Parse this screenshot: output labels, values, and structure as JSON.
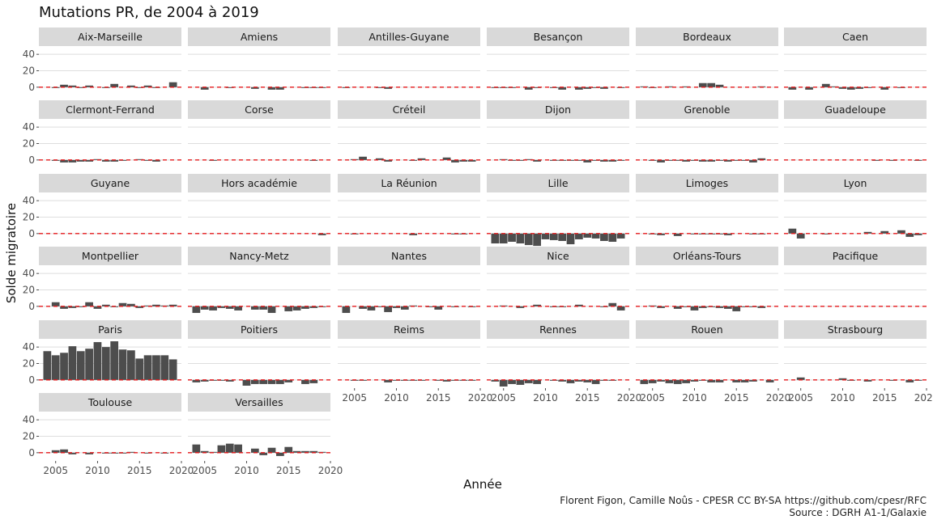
{
  "chart_data": {
    "type": "bar",
    "title": "Mutations PR, de 2004 à 2019",
    "xlabel": "Année",
    "ylabel": "Solde migratoire",
    "x_ticks": [
      2005,
      2010,
      2015,
      2020
    ],
    "y_ticks": [
      0,
      20,
      40
    ],
    "xlim": [
      2003,
      2020
    ],
    "ylim": [
      -10,
      50
    ],
    "reference_line": {
      "y": 0,
      "color": "#e41a1c",
      "style": "dashed"
    },
    "years": [
      2004,
      2005,
      2006,
      2007,
      2008,
      2009,
      2010,
      2011,
      2012,
      2013,
      2014,
      2015,
      2016,
      2017,
      2018,
      2019
    ],
    "panels": [
      {
        "name": "Aix-Marseille",
        "values": [
          0,
          -1,
          3,
          2,
          -1,
          2,
          0,
          -1,
          4,
          0,
          2,
          -1,
          2,
          -1,
          0,
          6
        ]
      },
      {
        "name": "Amiens",
        "values": [
          0,
          -3,
          0,
          0,
          -1,
          0,
          0,
          -2,
          0,
          -3,
          -3,
          0,
          0,
          -1,
          -1,
          -1
        ]
      },
      {
        "name": "Antilles-Guyane",
        "values": [
          -1,
          0,
          0,
          0,
          -1,
          -2,
          0,
          0,
          0,
          0,
          0,
          0,
          0,
          0,
          0,
          0
        ]
      },
      {
        "name": "Besançon",
        "values": [
          -1,
          -1,
          -1,
          0,
          -3,
          -1,
          0,
          -1,
          -3,
          0,
          -3,
          -2,
          -1,
          -2,
          0,
          -1
        ]
      },
      {
        "name": "Bordeaux",
        "values": [
          1,
          -1,
          0,
          1,
          0,
          1,
          0,
          5,
          5,
          3,
          0,
          0,
          0,
          0,
          1,
          0
        ]
      },
      {
        "name": "Caen",
        "values": [
          -3,
          0,
          -3,
          0,
          4,
          1,
          -2,
          -3,
          -2,
          -1,
          0,
          -3,
          0,
          -1,
          0,
          0
        ]
      },
      {
        "name": "Clermont-Ferrand",
        "values": [
          0,
          -1,
          -3,
          -3,
          -2,
          -2,
          1,
          -2,
          -2,
          -1,
          0,
          1,
          -1,
          -2,
          0,
          0
        ]
      },
      {
        "name": "Corse",
        "values": [
          0,
          0,
          -1,
          0,
          0,
          0,
          0,
          0,
          0,
          0,
          0,
          0,
          0,
          0,
          -1,
          0
        ]
      },
      {
        "name": "Créteil",
        "values": [
          0,
          1,
          4,
          0,
          2,
          -2,
          0,
          0,
          -1,
          2,
          0,
          0,
          3,
          -3,
          -2,
          -2
        ]
      },
      {
        "name": "Dijon",
        "values": [
          0,
          1,
          -1,
          -1,
          1,
          -2,
          0,
          -1,
          -1,
          -1,
          -1,
          -3,
          -1,
          -2,
          -2,
          -1
        ]
      },
      {
        "name": "Grenoble",
        "values": [
          0,
          -1,
          -3,
          -1,
          -1,
          -2,
          -1,
          -2,
          -2,
          -1,
          -2,
          -1,
          -1,
          -3,
          2,
          0
        ]
      },
      {
        "name": "Guadeloupe",
        "values": [
          0,
          0,
          0,
          0,
          0,
          0,
          0,
          0,
          0,
          0,
          -1,
          0,
          -1,
          0,
          0,
          -1
        ]
      },
      {
        "name": "Guyane",
        "values": [
          0,
          0,
          0,
          0,
          0,
          0,
          0,
          0,
          0,
          0,
          0,
          0,
          0,
          0,
          0,
          0
        ]
      },
      {
        "name": "Hors académie",
        "values": [
          0,
          0,
          0,
          0,
          0,
          0,
          0,
          0,
          0,
          0,
          0,
          0,
          0,
          0,
          0,
          -2
        ]
      },
      {
        "name": "La Réunion",
        "values": [
          0,
          -1,
          0,
          0,
          0,
          0,
          0,
          0,
          -2,
          0,
          0,
          0,
          0,
          -1,
          -1,
          0
        ]
      },
      {
        "name": "Lille",
        "values": [
          -12,
          -12,
          -10,
          -12,
          -14,
          -15,
          -7,
          -8,
          -9,
          -13,
          -7,
          -5,
          -6,
          -9,
          -10,
          -6
        ]
      },
      {
        "name": "Limoges",
        "values": [
          0,
          -1,
          -2,
          0,
          -3,
          0,
          -1,
          -1,
          -1,
          -1,
          -2,
          0,
          0,
          -1,
          -1,
          0
        ]
      },
      {
        "name": "Lyon",
        "values": [
          6,
          -6,
          0,
          0,
          -1,
          0,
          0,
          0,
          0,
          2,
          0,
          3,
          0,
          4,
          -4,
          -2
        ]
      },
      {
        "name": "Montpellier",
        "values": [
          0,
          5,
          -3,
          -2,
          -1,
          5,
          -3,
          2,
          -1,
          4,
          3,
          -2,
          1,
          2,
          1,
          2
        ]
      },
      {
        "name": "Nancy-Metz",
        "values": [
          -8,
          -4,
          -5,
          -2,
          -3,
          -5,
          0,
          -4,
          -4,
          -8,
          0,
          -6,
          -5,
          -3,
          -2,
          -1
        ]
      },
      {
        "name": "Nantes",
        "values": [
          -8,
          0,
          -3,
          -5,
          -1,
          -7,
          -2,
          -4,
          1,
          0,
          -1,
          -4,
          0,
          -1,
          0,
          -1
        ]
      },
      {
        "name": "Nice",
        "values": [
          0,
          1,
          0,
          -2,
          0,
          2,
          0,
          -1,
          -1,
          0,
          2,
          0,
          0,
          -1,
          4,
          -5
        ]
      },
      {
        "name": "Orléans-Tours",
        "values": [
          0,
          1,
          -2,
          0,
          -3,
          -1,
          -5,
          -2,
          -1,
          -2,
          -3,
          -6,
          -1,
          -1,
          -2,
          0
        ]
      },
      {
        "name": "Pacifique",
        "values": [
          0,
          0,
          0,
          0,
          0,
          0,
          0,
          0,
          0,
          0,
          0,
          0,
          0,
          0,
          0,
          0
        ]
      },
      {
        "name": "Paris",
        "values": [
          35,
          30,
          33,
          41,
          35,
          38,
          46,
          40,
          47,
          37,
          36,
          26,
          30,
          30,
          30,
          25
        ]
      },
      {
        "name": "Poitiers",
        "values": [
          -3,
          -2,
          -1,
          -1,
          -2,
          0,
          -7,
          -5,
          -5,
          -5,
          -5,
          -3,
          0,
          -5,
          -4,
          0
        ]
      },
      {
        "name": "Reims",
        "values": [
          0,
          -1,
          -1,
          0,
          0,
          -3,
          -1,
          -1,
          -1,
          -1,
          0,
          -1,
          -2,
          -1,
          -1,
          -1
        ]
      },
      {
        "name": "Rennes",
        "values": [
          -2,
          -8,
          -5,
          -6,
          -4,
          -5,
          0,
          -1,
          -2,
          -4,
          -2,
          -3,
          -5,
          -1,
          -1,
          0
        ]
      },
      {
        "name": "Rouen",
        "values": [
          -5,
          -4,
          -2,
          -4,
          -5,
          -4,
          -2,
          -1,
          -3,
          -3,
          0,
          -3,
          -3,
          -2,
          0,
          -3
        ]
      },
      {
        "name": "Strasbourg",
        "values": [
          0,
          3,
          0,
          0,
          0,
          0,
          2,
          -1,
          0,
          -2,
          0,
          0,
          -1,
          0,
          -3,
          -1
        ]
      },
      {
        "name": "Toulouse",
        "values": [
          0,
          3,
          4,
          -2,
          0,
          -2,
          0,
          -1,
          -1,
          -1,
          1,
          0,
          -1,
          0,
          -1,
          0
        ]
      },
      {
        "name": "Versailles",
        "values": [
          10,
          2,
          1,
          9,
          11,
          10,
          0,
          5,
          -3,
          6,
          -4,
          7,
          2,
          2,
          2,
          1
        ]
      }
    ]
  },
  "caption": {
    "line1": "Florent Figon, Camille Noûs - CPESR CC BY-SA https://github.com/cpesr/RFC",
    "line2": "Source : DGRH A1-1/Galaxie"
  }
}
